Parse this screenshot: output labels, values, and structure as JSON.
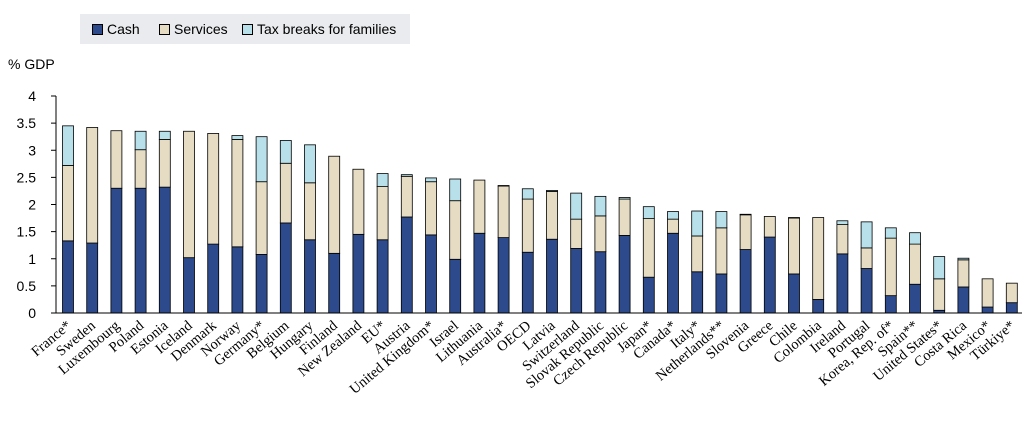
{
  "chart_data": {
    "type": "bar",
    "stacked": true,
    "ylabel": "% GDP",
    "ylim": [
      0,
      4
    ],
    "yticks": [
      0,
      0.5,
      1,
      1.5,
      2,
      2.5,
      3,
      3.5,
      4
    ],
    "legend_position": "top-left",
    "categories": [
      "France*",
      "Sweden",
      "Luxembourg",
      "Poland",
      "Estonia",
      "Iceland",
      "Denmark",
      "Norway",
      "Germany*",
      "Belgium",
      "Hungary",
      "Finland",
      "New Zealand",
      "EU*",
      "Austria",
      "United Kingdom*",
      "Israel",
      "Lithuania",
      "Australia*",
      "OECD",
      "Latvia",
      "Switzerland",
      "Slovak Republic",
      "Czech Republic",
      "Japan*",
      "Canada*",
      "Italy*",
      "Netherlands**",
      "Slovenia",
      "Greece",
      "Chile",
      "Colombia",
      "Ireland",
      "Portugal",
      "Korea, Rep. of*",
      "Spain**",
      "United States*",
      "Costa Rica",
      "Mexico*",
      "Türkiye*"
    ],
    "series": [
      {
        "name": "Cash",
        "color": "#2c4a8c",
        "values": [
          1.33,
          1.29,
          2.3,
          2.3,
          2.32,
          1.02,
          1.27,
          1.22,
          1.08,
          1.66,
          1.35,
          1.1,
          1.45,
          1.35,
          1.77,
          1.44,
          0.99,
          1.47,
          1.39,
          1.12,
          1.36,
          1.19,
          1.13,
          1.43,
          0.66,
          1.47,
          0.76,
          0.72,
          1.17,
          1.4,
          0.72,
          0.25,
          1.09,
          0.82,
          0.32,
          0.53,
          0.05,
          0.48,
          0.11,
          0.19
        ]
      },
      {
        "name": "Services",
        "color": "#e5dcc3",
        "values": [
          1.39,
          2.13,
          1.06,
          0.71,
          0.88,
          2.33,
          2.04,
          1.98,
          1.34,
          1.1,
          1.05,
          1.79,
          1.2,
          0.98,
          0.75,
          0.98,
          1.08,
          0.98,
          0.95,
          0.98,
          0.88,
          0.54,
          0.66,
          0.67,
          1.08,
          0.26,
          0.66,
          0.85,
          0.64,
          0.38,
          1.03,
          1.51,
          0.54,
          0.38,
          1.06,
          0.74,
          0.58,
          0.5,
          0.52,
          0.36
        ]
      },
      {
        "name": "Tax breaks for families",
        "color": "#b7e0ea",
        "values": [
          0.73,
          0.0,
          0.0,
          0.34,
          0.15,
          0.0,
          0.0,
          0.07,
          0.83,
          0.42,
          0.7,
          0.0,
          0.0,
          0.24,
          0.03,
          0.07,
          0.4,
          0.0,
          0.01,
          0.19,
          0.02,
          0.48,
          0.36,
          0.03,
          0.22,
          0.14,
          0.46,
          0.3,
          0.01,
          0.0,
          0.01,
          0.0,
          0.07,
          0.48,
          0.19,
          0.21,
          0.41,
          0.03,
          0.0,
          0.0
        ]
      }
    ]
  }
}
